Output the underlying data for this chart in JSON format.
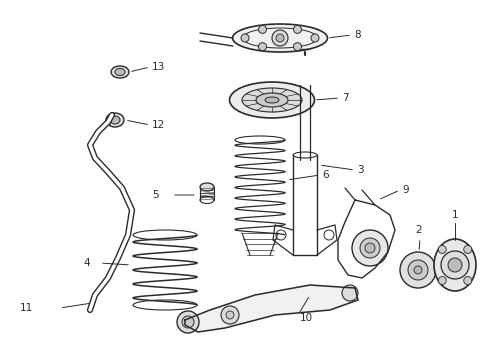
{
  "bg_color": "#ffffff",
  "lc": "#2a2a2a",
  "fig_width": 4.9,
  "fig_height": 3.6,
  "dpi": 100,
  "xlim": [
    0,
    490
  ],
  "ylim": [
    0,
    360
  ]
}
